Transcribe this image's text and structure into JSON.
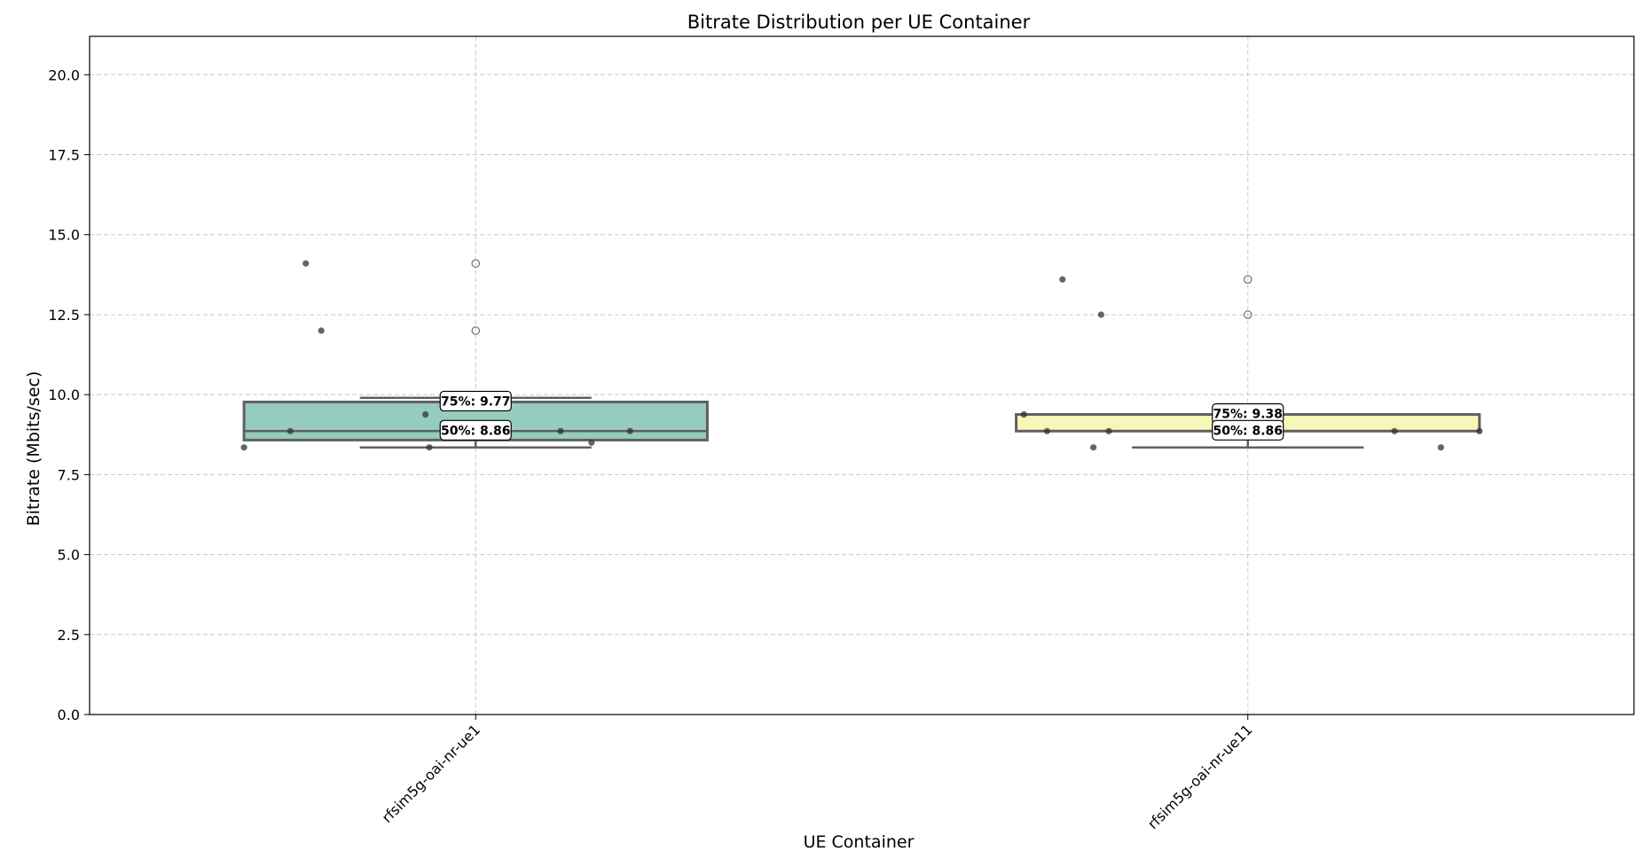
{
  "chart_data": {
    "type": "box",
    "title": "Bitrate Distribution per UE Container",
    "xlabel": "UE Container",
    "ylabel": "Bitrate (Mbits/sec)",
    "ylim": [
      0,
      21.2
    ],
    "yticks": [
      0.0,
      2.5,
      5.0,
      7.5,
      10.0,
      12.5,
      15.0,
      17.5,
      20.0
    ],
    "ytick_labels": [
      "0.0",
      "2.5",
      "5.0",
      "7.5",
      "10.0",
      "12.5",
      "15.0",
      "17.5",
      "20.0"
    ],
    "grid": true,
    "categories": [
      "rfsim5g-oai-nr-ue1",
      "rfsim5g-oai-nr-ue11"
    ],
    "boxes": [
      {
        "category": "rfsim5g-oai-nr-ue1",
        "color": "#96cbbf",
        "q1": 8.58,
        "median": 8.86,
        "q3": 9.77,
        "whisker_low": 8.35,
        "whisker_high": 9.9,
        "outliers": [
          14.1,
          12.0
        ],
        "points": [
          {
            "offset": -0.3,
            "y": 8.35
          },
          {
            "offset": -0.24,
            "y": 8.86
          },
          {
            "offset": -0.22,
            "y": 14.1
          },
          {
            "offset": -0.2,
            "y": 12.0
          },
          {
            "offset": -0.065,
            "y": 9.38
          },
          {
            "offset": -0.06,
            "y": 8.35
          },
          {
            "offset": 0.11,
            "y": 8.86
          },
          {
            "offset": 0.15,
            "y": 8.5
          },
          {
            "offset": 0.2,
            "y": 8.86
          }
        ],
        "annotations": [
          {
            "label": "75%: 9.77",
            "y": 9.77
          },
          {
            "label": "50%: 8.86",
            "y": 8.86
          }
        ]
      },
      {
        "category": "rfsim5g-oai-nr-ue11",
        "color": "#f6f6b9",
        "q1": 8.86,
        "median": 8.86,
        "q3": 9.38,
        "whisker_low": 8.35,
        "whisker_high": 9.38,
        "outliers": [
          13.6,
          12.5
        ],
        "points": [
          {
            "offset": -0.29,
            "y": 9.38
          },
          {
            "offset": -0.26,
            "y": 8.86
          },
          {
            "offset": -0.24,
            "y": 13.6
          },
          {
            "offset": -0.2,
            "y": 8.35
          },
          {
            "offset": -0.19,
            "y": 12.5
          },
          {
            "offset": -0.18,
            "y": 8.86
          },
          {
            "offset": 0.19,
            "y": 8.86
          },
          {
            "offset": 0.25,
            "y": 8.35
          },
          {
            "offset": 0.3,
            "y": 8.86
          }
        ],
        "annotations": [
          {
            "label": "75%: 9.38",
            "y": 9.38
          },
          {
            "label": "50%: 8.86",
            "y": 8.86
          }
        ]
      }
    ]
  }
}
